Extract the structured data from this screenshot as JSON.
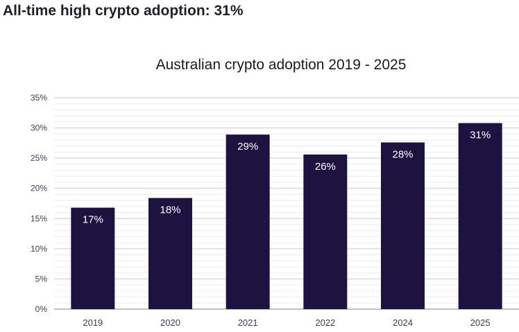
{
  "headline": "All-time high crypto adoption: 31%",
  "colors": {
    "bar": "#1e1240",
    "grid_major": "#c9c6e2",
    "grid_minor": "#ece9f5",
    "axis": "#9a97b8"
  },
  "chart_data": {
    "type": "bar",
    "title": "Australian crypto adoption 2019 - 2025",
    "categories": [
      "2019",
      "2020",
      "2021",
      "2022",
      "2024",
      "2025"
    ],
    "values": [
      16.8,
      18.4,
      28.9,
      25.6,
      27.6,
      30.8
    ],
    "data_labels": [
      "17%",
      "18%",
      "29%",
      "26%",
      "28%",
      "31%"
    ],
    "y_ticks": [
      0,
      5,
      10,
      15,
      20,
      25,
      30,
      35
    ],
    "y_tick_labels": [
      "0%",
      "5%",
      "10%",
      "15%",
      "20%",
      "25%",
      "30%",
      "35%"
    ],
    "ylim": [
      0,
      35
    ],
    "xlabel": "",
    "ylabel": "",
    "grid": true,
    "legend": "none"
  }
}
